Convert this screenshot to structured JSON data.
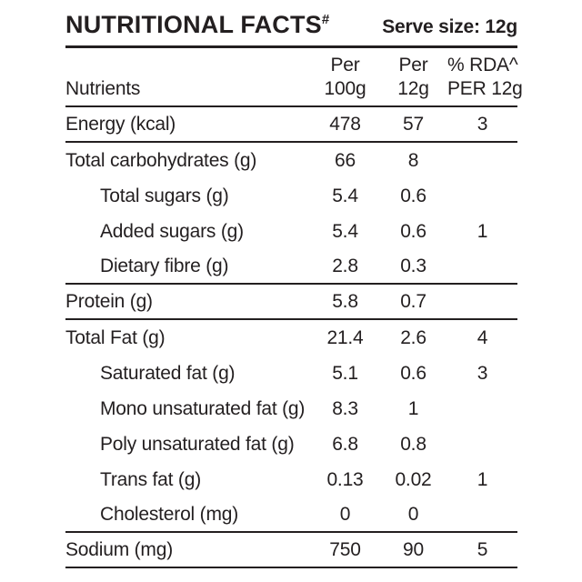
{
  "header": {
    "title": "NUTRITIONAL FACTS",
    "title_superscript": "#",
    "serve_size": "Serve size: 12g"
  },
  "table": {
    "column_headers": {
      "nutrients": "Nutrients",
      "per_100g_line1": "Per",
      "per_100g_line2": "100g",
      "per_12g_line1": "Per",
      "per_12g_line2": "12g",
      "rda_line1": "% RDA^",
      "rda_line2": "PER 12g"
    },
    "rows": [
      {
        "label": "Energy (kcal)",
        "per_100g": "478",
        "per_12g": "57",
        "rda": "3",
        "indent": false,
        "divider_after": true
      },
      {
        "label": "Total carbohydrates (g)",
        "per_100g": "66",
        "per_12g": "8",
        "rda": "",
        "indent": false,
        "divider_after": false
      },
      {
        "label": "Total sugars (g)",
        "per_100g": "5.4",
        "per_12g": "0.6",
        "rda": "",
        "indent": true,
        "divider_after": false
      },
      {
        "label": "Added sugars (g)",
        "per_100g": "5.4",
        "per_12g": "0.6",
        "rda": "1",
        "indent": true,
        "divider_after": false
      },
      {
        "label": "Dietary fibre (g)",
        "per_100g": "2.8",
        "per_12g": "0.3",
        "rda": "",
        "indent": true,
        "divider_after": true
      },
      {
        "label": "Protein (g)",
        "per_100g": "5.8",
        "per_12g": "0.7",
        "rda": "",
        "indent": false,
        "divider_after": true
      },
      {
        "label": "Total Fat (g)",
        "per_100g": "21.4",
        "per_12g": "2.6",
        "rda": "4",
        "indent": false,
        "divider_after": false
      },
      {
        "label": "Saturated fat (g)",
        "per_100g": "5.1",
        "per_12g": "0.6",
        "rda": "3",
        "indent": true,
        "divider_after": false
      },
      {
        "label": "Mono unsaturated fat (g)",
        "per_100g": "8.3",
        "per_12g": "1",
        "rda": "",
        "indent": true,
        "divider_after": false
      },
      {
        "label": "Poly unsaturated fat (g)",
        "per_100g": "6.8",
        "per_12g": "0.8",
        "rda": "",
        "indent": true,
        "divider_after": false
      },
      {
        "label": "Trans fat (g)",
        "per_100g": "0.13",
        "per_12g": "0.02",
        "rda": "1",
        "indent": true,
        "divider_after": false
      },
      {
        "label": "Cholesterol (mg)",
        "per_100g": "0",
        "per_12g": "0",
        "rda": "",
        "indent": true,
        "divider_after": true
      },
      {
        "label": "Sodium (mg)",
        "per_100g": "750",
        "per_12g": "90",
        "rda": "5",
        "indent": false,
        "divider_after": true
      }
    ]
  },
  "colors": {
    "text": "#231f20",
    "background": "#ffffff",
    "rule": "#231f20"
  }
}
